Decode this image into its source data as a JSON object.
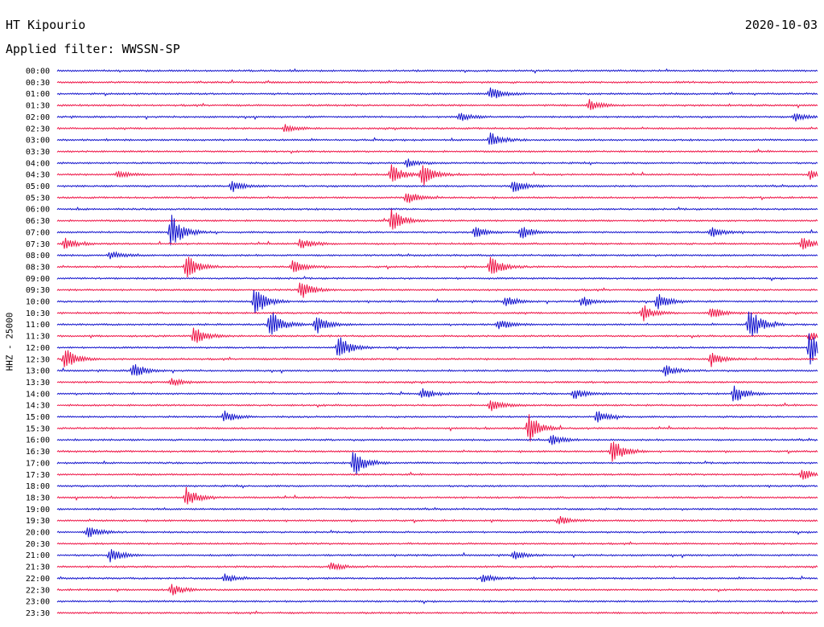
{
  "header": {
    "station": "HT Kipourio",
    "date": "2020-10-03",
    "filter": "Applied filter: WWSSN-SP"
  },
  "ylabel": "HHZ - 25000",
  "colors": {
    "even": "#1010cc",
    "odd": "#ee1144"
  },
  "chart_data": {
    "type": "line",
    "title": "",
    "xlabel": "",
    "ylabel": "HHZ - 25000",
    "row_labels": [
      "00:00",
      "00:30",
      "01:00",
      "01:30",
      "02:00",
      "02:30",
      "03:00",
      "03:30",
      "04:00",
      "04:30",
      "05:00",
      "05:30",
      "06:00",
      "06:30",
      "07:00",
      "07:30",
      "08:00",
      "08:30",
      "09:00",
      "09:30",
      "10:00",
      "10:30",
      "11:00",
      "11:30",
      "12:00",
      "12:30",
      "13:00",
      "13:30",
      "14:00",
      "14:30",
      "15:00",
      "15:30",
      "16:00",
      "16:30",
      "17:00",
      "17:30",
      "18:00",
      "18:30",
      "19:00",
      "19:30",
      "20:00",
      "20:30",
      "21:00",
      "21:30",
      "22:00",
      "22:30",
      "23:00",
      "23:30"
    ],
    "row_period_minutes": 30,
    "events": [
      {
        "row": 2,
        "t": 0.57,
        "amp": 0.5
      },
      {
        "row": 3,
        "t": 0.7,
        "amp": 0.4
      },
      {
        "row": 4,
        "t": 0.53,
        "amp": 0.3
      },
      {
        "row": 4,
        "t": 0.97,
        "amp": 0.3
      },
      {
        "row": 5,
        "t": 0.3,
        "amp": 0.3
      },
      {
        "row": 6,
        "t": 0.57,
        "amp": 0.5
      },
      {
        "row": 8,
        "t": 0.46,
        "amp": 0.3
      },
      {
        "row": 9,
        "t": 0.44,
        "amp": 0.7
      },
      {
        "row": 9,
        "t": 0.48,
        "amp": 0.8
      },
      {
        "row": 9,
        "t": 0.08,
        "amp": 0.3
      },
      {
        "row": 9,
        "t": 0.99,
        "amp": 0.3
      },
      {
        "row": 10,
        "t": 0.23,
        "amp": 0.4
      },
      {
        "row": 10,
        "t": 0.6,
        "amp": 0.5
      },
      {
        "row": 11,
        "t": 0.46,
        "amp": 0.5
      },
      {
        "row": 13,
        "t": 0.44,
        "amp": 0.9
      },
      {
        "row": 14,
        "t": 0.15,
        "amp": 1.3
      },
      {
        "row": 14,
        "t": 0.55,
        "amp": 0.4
      },
      {
        "row": 14,
        "t": 0.61,
        "amp": 0.5
      },
      {
        "row": 14,
        "t": 0.86,
        "amp": 0.4
      },
      {
        "row": 15,
        "t": 0.32,
        "amp": 0.4
      },
      {
        "row": 15,
        "t": 0.98,
        "amp": 0.5
      },
      {
        "row": 15,
        "t": 0.01,
        "amp": 0.4
      },
      {
        "row": 16,
        "t": 0.07,
        "amp": 0.3
      },
      {
        "row": 17,
        "t": 0.17,
        "amp": 0.9
      },
      {
        "row": 17,
        "t": 0.31,
        "amp": 0.5
      },
      {
        "row": 17,
        "t": 0.57,
        "amp": 0.8
      },
      {
        "row": 19,
        "t": 0.32,
        "amp": 0.7
      },
      {
        "row": 20,
        "t": 0.26,
        "amp": 1.2
      },
      {
        "row": 20,
        "t": 0.59,
        "amp": 0.4
      },
      {
        "row": 20,
        "t": 0.69,
        "amp": 0.4
      },
      {
        "row": 20,
        "t": 0.79,
        "amp": 0.6
      },
      {
        "row": 21,
        "t": 0.77,
        "amp": 0.6
      },
      {
        "row": 21,
        "t": 0.86,
        "amp": 0.5
      },
      {
        "row": 22,
        "t": 0.28,
        "amp": 1.1
      },
      {
        "row": 22,
        "t": 0.34,
        "amp": 0.7
      },
      {
        "row": 22,
        "t": 0.58,
        "amp": 0.4
      },
      {
        "row": 22,
        "t": 0.91,
        "amp": 1.3
      },
      {
        "row": 23,
        "t": 0.18,
        "amp": 0.7
      },
      {
        "row": 23,
        "t": 0.99,
        "amp": 0.3
      },
      {
        "row": 24,
        "t": 0.37,
        "amp": 0.9
      },
      {
        "row": 24,
        "t": 0.99,
        "amp": 1.3
      },
      {
        "row": 25,
        "t": 0.01,
        "amp": 0.8
      },
      {
        "row": 25,
        "t": 0.86,
        "amp": 0.5
      },
      {
        "row": 26,
        "t": 0.1,
        "amp": 0.6
      },
      {
        "row": 26,
        "t": 0.8,
        "amp": 0.4
      },
      {
        "row": 27,
        "t": 0.15,
        "amp": 0.3
      },
      {
        "row": 28,
        "t": 0.48,
        "amp": 0.4
      },
      {
        "row": 28,
        "t": 0.68,
        "amp": 0.4
      },
      {
        "row": 28,
        "t": 0.89,
        "amp": 0.7
      },
      {
        "row": 29,
        "t": 0.57,
        "amp": 0.4
      },
      {
        "row": 30,
        "t": 0.22,
        "amp": 0.4
      },
      {
        "row": 30,
        "t": 0.71,
        "amp": 0.4
      },
      {
        "row": 31,
        "t": 0.62,
        "amp": 1.1
      },
      {
        "row": 32,
        "t": 0.65,
        "amp": 0.4
      },
      {
        "row": 33,
        "t": 0.73,
        "amp": 0.9
      },
      {
        "row": 34,
        "t": 0.39,
        "amp": 1.0
      },
      {
        "row": 35,
        "t": 0.98,
        "amp": 0.4
      },
      {
        "row": 37,
        "t": 0.17,
        "amp": 0.7
      },
      {
        "row": 39,
        "t": 0.66,
        "amp": 0.3
      },
      {
        "row": 40,
        "t": 0.04,
        "amp": 0.5
      },
      {
        "row": 42,
        "t": 0.07,
        "amp": 0.5
      },
      {
        "row": 42,
        "t": 0.6,
        "amp": 0.3
      },
      {
        "row": 43,
        "t": 0.36,
        "amp": 0.3
      },
      {
        "row": 44,
        "t": 0.22,
        "amp": 0.3
      },
      {
        "row": 44,
        "t": 0.56,
        "amp": 0.3
      },
      {
        "row": 45,
        "t": 0.15,
        "amp": 0.4
      }
    ]
  }
}
